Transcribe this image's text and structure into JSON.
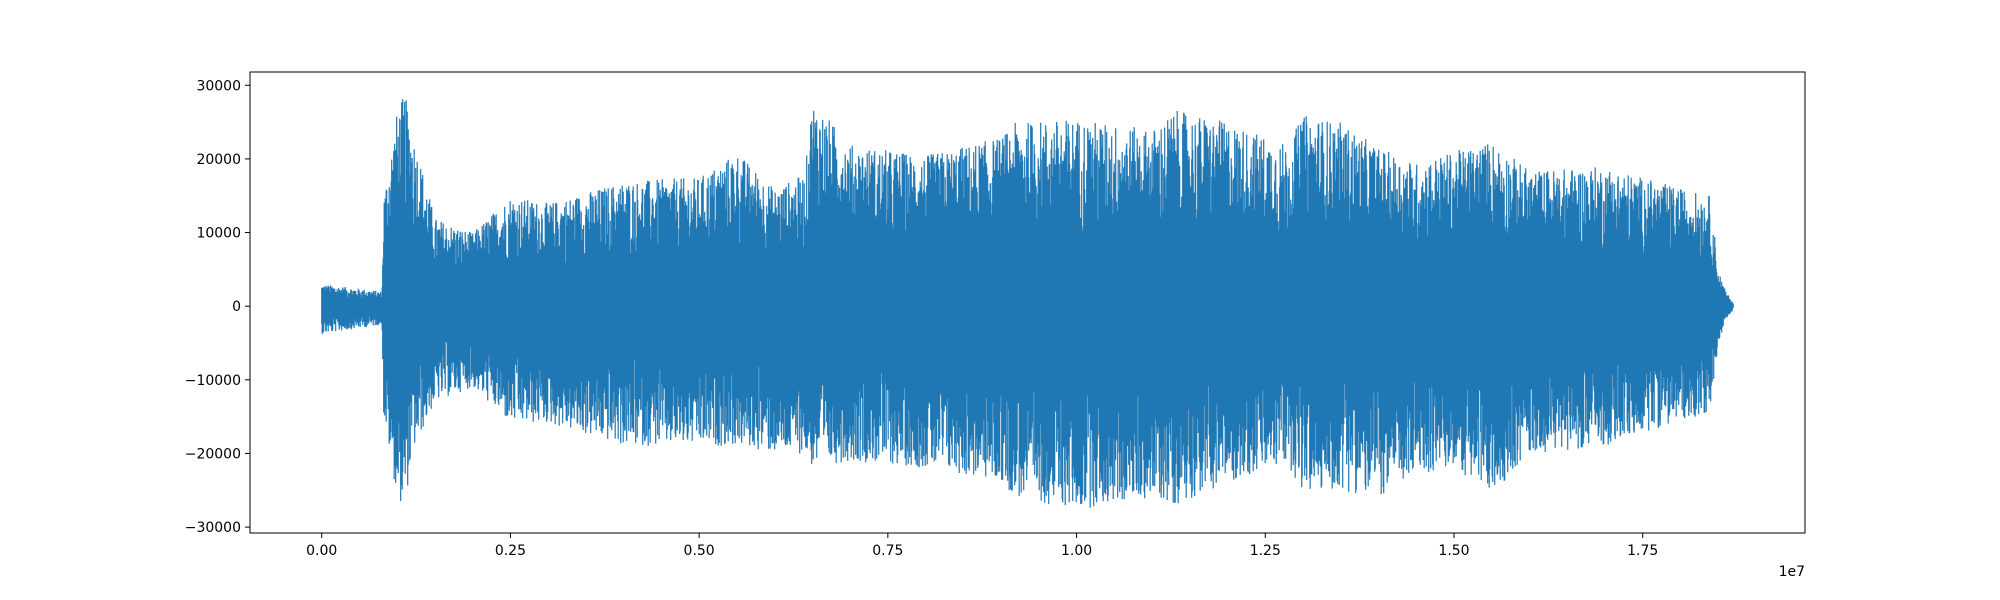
{
  "chart_data": {
    "type": "line",
    "title": "",
    "xlabel": "",
    "ylabel": "",
    "x_offset_label": "1e7",
    "xlim": [
      -950000,
      19650000
    ],
    "ylim": [
      -30800,
      31800
    ],
    "x_ticks": [
      {
        "value": 0,
        "label": "0.00"
      },
      {
        "value": 2500000,
        "label": "0.25"
      },
      {
        "value": 5000000,
        "label": "0.50"
      },
      {
        "value": 7500000,
        "label": "0.75"
      },
      {
        "value": 10000000,
        "label": "1.00"
      },
      {
        "value": 12500000,
        "label": "1.25"
      },
      {
        "value": 15000000,
        "label": "1.50"
      },
      {
        "value": 17500000,
        "label": "1.75"
      }
    ],
    "y_ticks": [
      {
        "value": -30000,
        "label": "−30000"
      },
      {
        "value": -20000,
        "label": "−20000"
      },
      {
        "value": -10000,
        "label": "−10000"
      },
      {
        "value": 0,
        "label": "0"
      },
      {
        "value": 10000,
        "label": "10000"
      },
      {
        "value": 20000,
        "label": "20000"
      },
      {
        "value": 30000,
        "label": "30000"
      }
    ],
    "grid": false,
    "legend": "none",
    "color": "#1f77b4",
    "series": [
      {
        "x": [
          0,
          800000,
          820000,
          1000000,
          1100000,
          1200000,
          1500000,
          2000000,
          2500000,
          3000000,
          4000000,
          5000000,
          5500000,
          6000000,
          6400000,
          6500000,
          7000000,
          8000000,
          9000000,
          9200000,
          10000000,
          11000000,
          11300000,
          12000000,
          12800000,
          13000000,
          13500000,
          14000000,
          14500000,
          15000000,
          15500000,
          16000000,
          17000000,
          18000000,
          18400000,
          18500000,
          18600000,
          18700000
        ],
        "envelope_max": [
          3000,
          2000,
          15000,
          26500,
          29000,
          24000,
          12000,
          10000,
          15000,
          14000,
          17000,
          17500,
          21000,
          16000,
          18000,
          28200,
          22000,
          20500,
          23000,
          25000,
          25500,
          24000,
          26600,
          25000,
          22000,
          26000,
          25000,
          21500,
          19500,
          21000,
          22500,
          18500,
          19000,
          16000,
          15000,
          5000,
          2000,
          500
        ],
        "envelope_min": [
          -3800,
          -2500,
          -15000,
          -26000,
          -27500,
          -20000,
          -13000,
          -11000,
          -16000,
          -16000,
          -19000,
          -19000,
          -19000,
          -20000,
          -20000,
          -22000,
          -21000,
          -22000,
          -24000,
          -26000,
          -27700,
          -26000,
          -27000,
          -24000,
          -21500,
          -25500,
          -25000,
          -26000,
          -23000,
          -22000,
          -25600,
          -20000,
          -19000,
          -15500,
          -14500,
          -5000,
          -2000,
          -500
        ]
      }
    ]
  }
}
